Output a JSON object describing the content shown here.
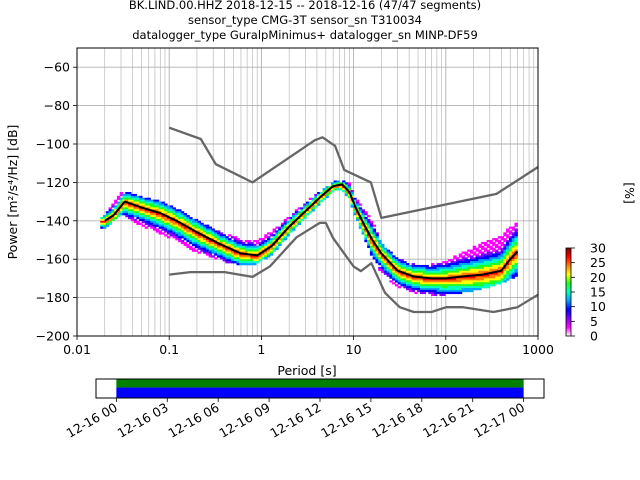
{
  "chart_data": [
    {
      "type": "heatmap",
      "title_lines": [
        "BK.LIND.00.HHZ   2018-12-15 -- 2018-12-16  (47/47 segments)",
        "sensor_type CMG-3T sensor_sn T310034",
        "datalogger_type GuralpMinimus+ datalogger_sn MINP-DF59"
      ],
      "xlabel": "Period [s]",
      "ylabel": "Power [m²/s⁴/Hz] [dB]",
      "xscale": "log",
      "xlim": [
        0.01,
        1000
      ],
      "ylim": [
        -200,
        -50
      ],
      "xticks": [
        {
          "value": 0.01,
          "label": "0.01"
        },
        {
          "value": 0.1,
          "label": "0.1"
        },
        {
          "value": 1,
          "label": "1"
        },
        {
          "value": 10,
          "label": "10"
        },
        {
          "value": 100,
          "label": "100"
        },
        {
          "value": 1000,
          "label": "1000"
        }
      ],
      "yticks": [
        {
          "value": -200,
          "label": "−200"
        },
        {
          "value": -180,
          "label": "−180"
        },
        {
          "value": -160,
          "label": "−160"
        },
        {
          "value": -140,
          "label": "−140"
        },
        {
          "value": -120,
          "label": "−120"
        },
        {
          "value": -100,
          "label": "−100"
        },
        {
          "value": -80,
          "label": "−80"
        },
        {
          "value": -60,
          "label": "−60"
        }
      ],
      "grid": true,
      "colorbar": {
        "label": "[%]",
        "range": [
          0,
          30
        ],
        "ticks": [
          {
            "value": 0,
            "label": "0"
          },
          {
            "value": 5,
            "label": "5"
          },
          {
            "value": 10,
            "label": "10"
          },
          {
            "value": 15,
            "label": "15"
          },
          {
            "value": 20,
            "label": "20"
          },
          {
            "value": 25,
            "label": "25"
          },
          {
            "value": 30,
            "label": "30"
          }
        ],
        "colors": [
          "#ffffff",
          "#ff00ff",
          "#7f00ff",
          "#0000ff",
          "#00a0ff",
          "#00ffc0",
          "#20ff20",
          "#ffff00",
          "#ff8000",
          "#ff0000",
          "#800000"
        ]
      },
      "series": [
        {
          "name": "NHNM",
          "color": "#666666",
          "x": [
            0.1,
            0.22,
            0.32,
            0.8,
            3.8,
            4.6,
            6.3,
            7.9,
            15.4,
            20,
            354.8,
            1000
          ],
          "y": [
            -91.5,
            -97.4,
            -110.5,
            -120,
            -98,
            -96.5,
            -101,
            -113.5,
            -120,
            -138.5,
            -126,
            -112
          ]
        },
        {
          "name": "NLNM",
          "color": "#666666",
          "x": [
            0.1,
            0.17,
            0.4,
            0.8,
            1.24,
            2.4,
            4.3,
            5.0,
            6.0,
            10,
            12,
            15.6,
            21.9,
            31.6,
            45,
            70,
            101,
            154,
            328,
            600,
            1000
          ],
          "y": [
            -168,
            -166.7,
            -166.7,
            -169.2,
            -163.7,
            -148.6,
            -141.1,
            -141.1,
            -149,
            -163.8,
            -166.2,
            -162.1,
            -177.5,
            -185,
            -187.5,
            -187.5,
            -185,
            -185,
            -187.5,
            -185,
            -178.5
          ]
        },
        {
          "name": "mode",
          "color": "#000000",
          "x": [
            0.02,
            0.025,
            0.033,
            0.05,
            0.08,
            0.12,
            0.2,
            0.35,
            0.6,
            0.9,
            1.3,
            2,
            3,
            4.5,
            6,
            7.5,
            9,
            10.5,
            13,
            16,
            20,
            30,
            45,
            70,
            100,
            150,
            250,
            400,
            500,
            600
          ],
          "y": [
            -140,
            -137,
            -130,
            -133,
            -136,
            -140,
            -146,
            -152,
            -157,
            -158,
            -153,
            -143,
            -135,
            -127,
            -122,
            -121,
            -125,
            -133,
            -142,
            -150,
            -157,
            -166,
            -169,
            -170,
            -170,
            -169,
            -168,
            -166,
            -160,
            -156
          ]
        }
      ],
      "density_band": {
        "x": [
          0.018,
          0.022,
          0.03,
          0.035,
          0.05,
          0.08,
          0.12,
          0.2,
          0.35,
          0.6,
          0.9,
          1.3,
          2,
          3,
          4.5,
          6,
          7.5,
          9,
          10.5,
          13,
          16,
          20,
          30,
          45,
          70,
          100,
          150,
          250,
          400,
          600
        ],
        "y_low": [
          -145,
          -142,
          -136,
          -138,
          -142,
          -146,
          -150,
          -156,
          -160,
          -163,
          -162,
          -157,
          -147,
          -138,
          -130,
          -124,
          -123,
          -128,
          -137,
          -148,
          -158,
          -167,
          -174,
          -177,
          -178,
          -178,
          -177,
          -175,
          -172,
          -168
        ],
        "y_high": [
          -140,
          -134,
          -126,
          -125,
          -128,
          -130,
          -134,
          -140,
          -146,
          -150,
          -150,
          -146,
          -138,
          -131,
          -124,
          -120,
          -119,
          -121,
          -128,
          -134,
          -140,
          -152,
          -160,
          -163,
          -163,
          -161,
          -157,
          -152,
          -148,
          -140
        ]
      }
    },
    {
      "type": "timeline",
      "xticks": [
        {
          "value": 0,
          "label": "12-16 00"
        },
        {
          "value": 3,
          "label": "12-16 03"
        },
        {
          "value": 6,
          "label": "12-16 06"
        },
        {
          "value": 9,
          "label": "12-16 09"
        },
        {
          "value": 12,
          "label": "12-16 12"
        },
        {
          "value": 15,
          "label": "12-16 15"
        },
        {
          "value": 18,
          "label": "12-16 18"
        },
        {
          "value": 21,
          "label": "12-16 21"
        },
        {
          "value": 24,
          "label": "12-17 00"
        }
      ],
      "xlim": [
        -1.2,
        25.2
      ],
      "coverage": [
        {
          "start": 0,
          "end": 24,
          "color": "#008000"
        },
        {
          "start": 0,
          "end": 24,
          "color": "#0000ff"
        }
      ]
    }
  ]
}
